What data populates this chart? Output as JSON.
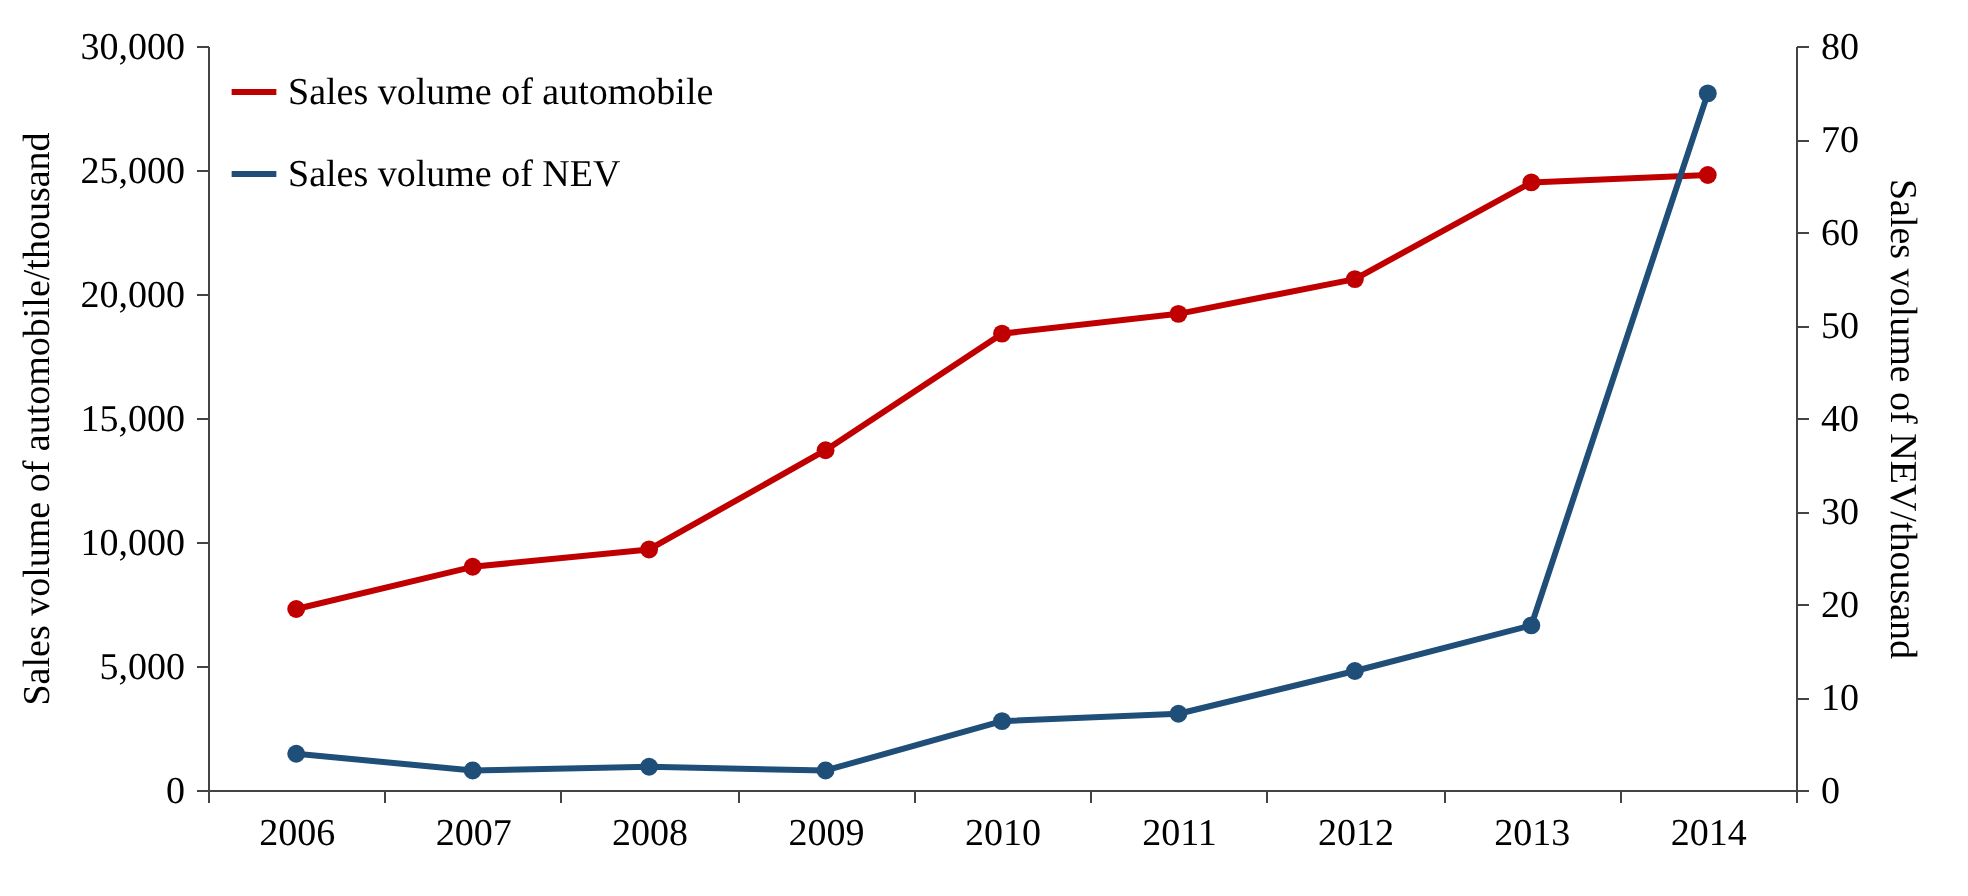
{
  "chart_data": {
    "type": "line",
    "categories": [
      "2006",
      "2007",
      "2008",
      "2009",
      "2010",
      "2011",
      "2012",
      "2013",
      "2014"
    ],
    "ylabel": "Sales volume of automobile/thousand",
    "y2label": "Sales volume of NEV/thousand",
    "series": [
      {
        "name": "Sales volume of automobile",
        "color": "#c00000",
        "values": [
          7300,
          9000,
          9700,
          13700,
          18400,
          19200,
          20600,
          24500,
          24800
        ]
      },
      {
        "name": "Sales volume of NEV",
        "color": "#1f4e79",
        "axis": "y2",
        "values": [
          3.9,
          2.1,
          2.5,
          2.1,
          7.4,
          8.2,
          12.8,
          17.7,
          74.9
        ]
      }
    ],
    "ylim": [
      0,
      30000
    ],
    "yticks": [
      {
        "value": 0,
        "label": "0"
      },
      {
        "value": 5000,
        "label": "5,000"
      },
      {
        "value": 10000,
        "label": "10,000"
      },
      {
        "value": 15000,
        "label": "15,000"
      },
      {
        "value": 20000,
        "label": "20,000"
      },
      {
        "value": 25000,
        "label": "25,000"
      },
      {
        "value": 30000,
        "label": "30,000"
      }
    ],
    "y2lim": [
      0,
      80
    ],
    "y2ticks": [
      0,
      10,
      20,
      30,
      40,
      50,
      60,
      70,
      80
    ],
    "legend": "top left",
    "marker": "circle",
    "grid": false,
    "line_style": "solid"
  }
}
